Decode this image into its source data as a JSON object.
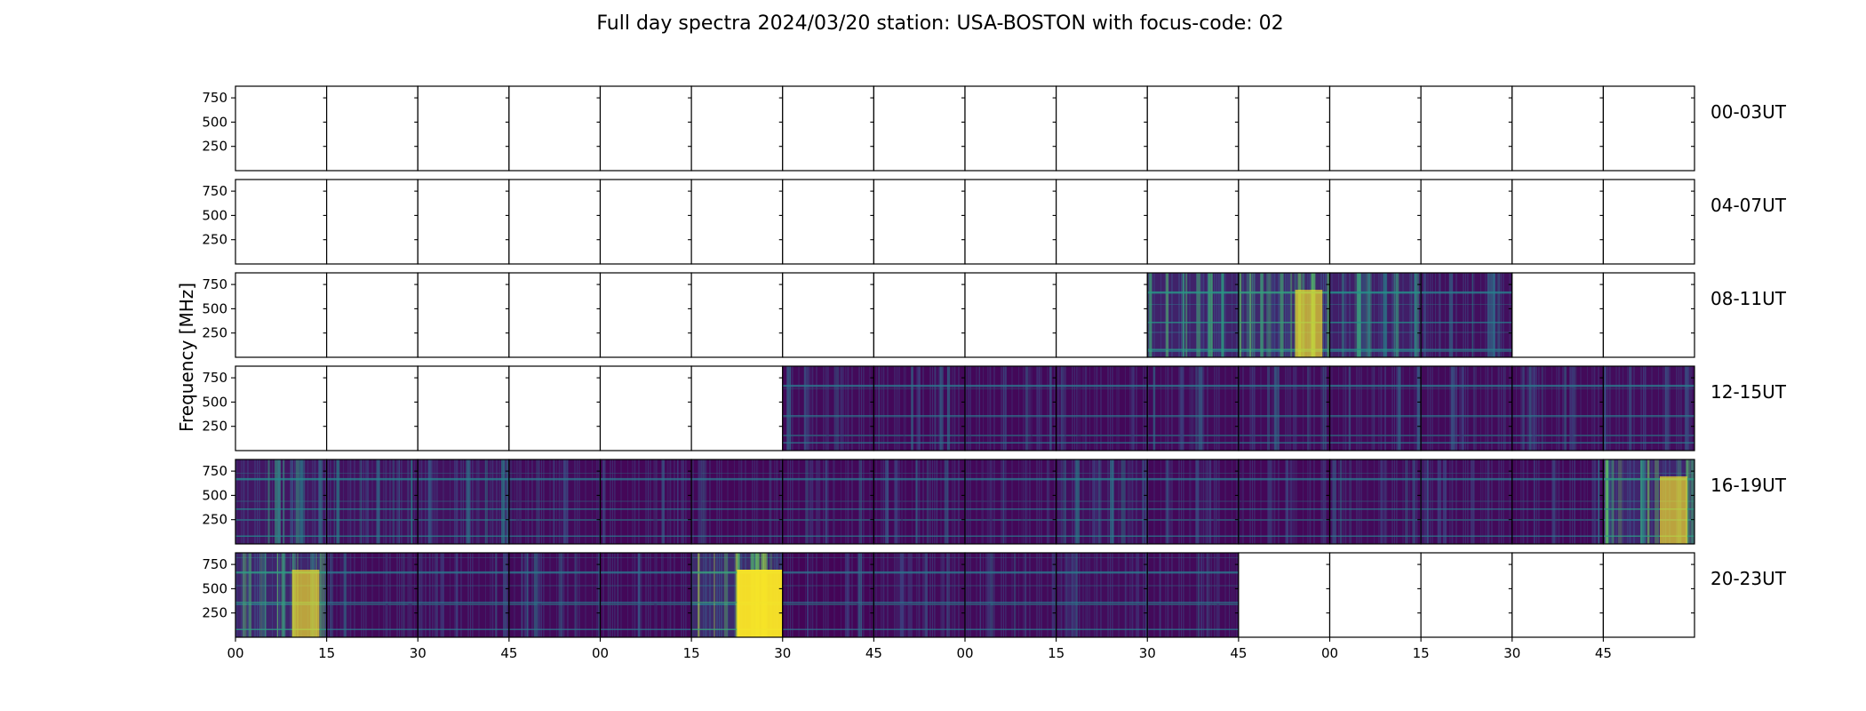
{
  "chart_data": {
    "type": "heatmap",
    "title": "Full day spectra 2024/03/20 station: USA-BOSTON with focus-code: 02",
    "ylabel": "Frequency [MHz]",
    "y_ticks": [
      250,
      500,
      750
    ],
    "y_range": [
      0,
      870
    ],
    "x_tick_labels": [
      "00",
      "15",
      "30",
      "45",
      "00",
      "15",
      "30",
      "45",
      "00",
      "15",
      "30",
      "45",
      "00",
      "15",
      "30",
      "45"
    ],
    "colormap": [
      "#440154",
      "#3b528b",
      "#21918c",
      "#5ec962",
      "#fde725"
    ],
    "colors": {
      "background": "#440154",
      "panel_background": "#ffffff",
      "axis": "#000000",
      "hot": "#fde725",
      "warm": "#5ec962",
      "teal": "#21918c",
      "blue": "#3b528b",
      "purple": "#46317e"
    },
    "segment_minutes": 15,
    "rows": [
      {
        "label": "00-03UT",
        "cells": [
          {
            "status": "empty"
          },
          {
            "status": "empty"
          },
          {
            "status": "empty"
          },
          {
            "status": "empty"
          },
          {
            "status": "empty"
          },
          {
            "status": "empty"
          },
          {
            "status": "empty"
          },
          {
            "status": "empty"
          },
          {
            "status": "empty"
          },
          {
            "status": "empty"
          },
          {
            "status": "empty"
          },
          {
            "status": "empty"
          },
          {
            "status": "empty"
          },
          {
            "status": "empty"
          },
          {
            "status": "empty"
          },
          {
            "status": "empty"
          }
        ]
      },
      {
        "label": "04-07UT",
        "cells": [
          {
            "status": "empty"
          },
          {
            "status": "empty"
          },
          {
            "status": "empty"
          },
          {
            "status": "empty"
          },
          {
            "status": "empty"
          },
          {
            "status": "empty"
          },
          {
            "status": "empty"
          },
          {
            "status": "empty"
          },
          {
            "status": "empty"
          },
          {
            "status": "empty"
          },
          {
            "status": "empty"
          },
          {
            "status": "empty"
          },
          {
            "status": "empty"
          },
          {
            "status": "empty"
          },
          {
            "status": "empty"
          },
          {
            "status": "empty"
          }
        ]
      },
      {
        "label": "08-11UT",
        "cells": [
          {
            "status": "empty"
          },
          {
            "status": "empty"
          },
          {
            "status": "empty"
          },
          {
            "status": "empty"
          },
          {
            "status": "empty"
          },
          {
            "status": "empty"
          },
          {
            "status": "empty"
          },
          {
            "status": "empty"
          },
          {
            "status": "empty"
          },
          {
            "status": "empty"
          },
          {
            "status": "data",
            "intensity": 0.45
          },
          {
            "status": "data",
            "intensity": 0.55
          },
          {
            "status": "data",
            "intensity": 0.4
          },
          {
            "status": "data",
            "intensity": 0.2
          },
          {
            "status": "empty"
          },
          {
            "status": "empty"
          }
        ]
      },
      {
        "label": "12-15UT",
        "cells": [
          {
            "status": "empty"
          },
          {
            "status": "empty"
          },
          {
            "status": "empty"
          },
          {
            "status": "empty"
          },
          {
            "status": "empty"
          },
          {
            "status": "empty"
          },
          {
            "status": "data",
            "intensity": 0.12
          },
          {
            "status": "data",
            "intensity": 0.1
          },
          {
            "status": "data",
            "intensity": 0.1
          },
          {
            "status": "data",
            "intensity": 0.1
          },
          {
            "status": "data",
            "intensity": 0.12
          },
          {
            "status": "data",
            "intensity": 0.12
          },
          {
            "status": "data",
            "intensity": 0.12
          },
          {
            "status": "data",
            "intensity": 0.12
          },
          {
            "status": "data",
            "intensity": 0.12
          },
          {
            "status": "data",
            "intensity": 0.15
          }
        ]
      },
      {
        "label": "16-19UT",
        "cells": [
          {
            "status": "data",
            "intensity": 0.3
          },
          {
            "status": "data",
            "intensity": 0.22
          },
          {
            "status": "data",
            "intensity": 0.22
          },
          {
            "status": "data",
            "intensity": 0.12
          },
          {
            "status": "data",
            "intensity": 0.08
          },
          {
            "status": "data",
            "intensity": 0.08
          },
          {
            "status": "data",
            "intensity": 0.1
          },
          {
            "status": "data",
            "intensity": 0.1
          },
          {
            "status": "data",
            "intensity": 0.1
          },
          {
            "status": "data",
            "intensity": 0.2
          },
          {
            "status": "data",
            "intensity": 0.1
          },
          {
            "status": "data",
            "intensity": 0.08
          },
          {
            "status": "data",
            "intensity": 0.12
          },
          {
            "status": "data",
            "intensity": 0.12
          },
          {
            "status": "data",
            "intensity": 0.1
          },
          {
            "status": "data",
            "intensity": 0.5
          }
        ]
      },
      {
        "label": "20-23UT",
        "cells": [
          {
            "status": "data",
            "intensity": 0.5
          },
          {
            "status": "data",
            "intensity": 0.12
          },
          {
            "status": "data",
            "intensity": 0.12
          },
          {
            "status": "data",
            "intensity": 0.12
          },
          {
            "status": "data",
            "intensity": 0.1
          },
          {
            "status": "data",
            "intensity": 0.6
          },
          {
            "status": "data",
            "intensity": 0.05
          },
          {
            "status": "data",
            "intensity": 0.12
          },
          {
            "status": "data",
            "intensity": 0.12
          },
          {
            "status": "data",
            "intensity": 0.15
          },
          {
            "status": "data",
            "intensity": 0.12
          },
          {
            "status": "empty"
          },
          {
            "status": "empty"
          },
          {
            "status": "empty"
          },
          {
            "status": "empty"
          },
          {
            "status": "empty"
          }
        ]
      }
    ]
  }
}
